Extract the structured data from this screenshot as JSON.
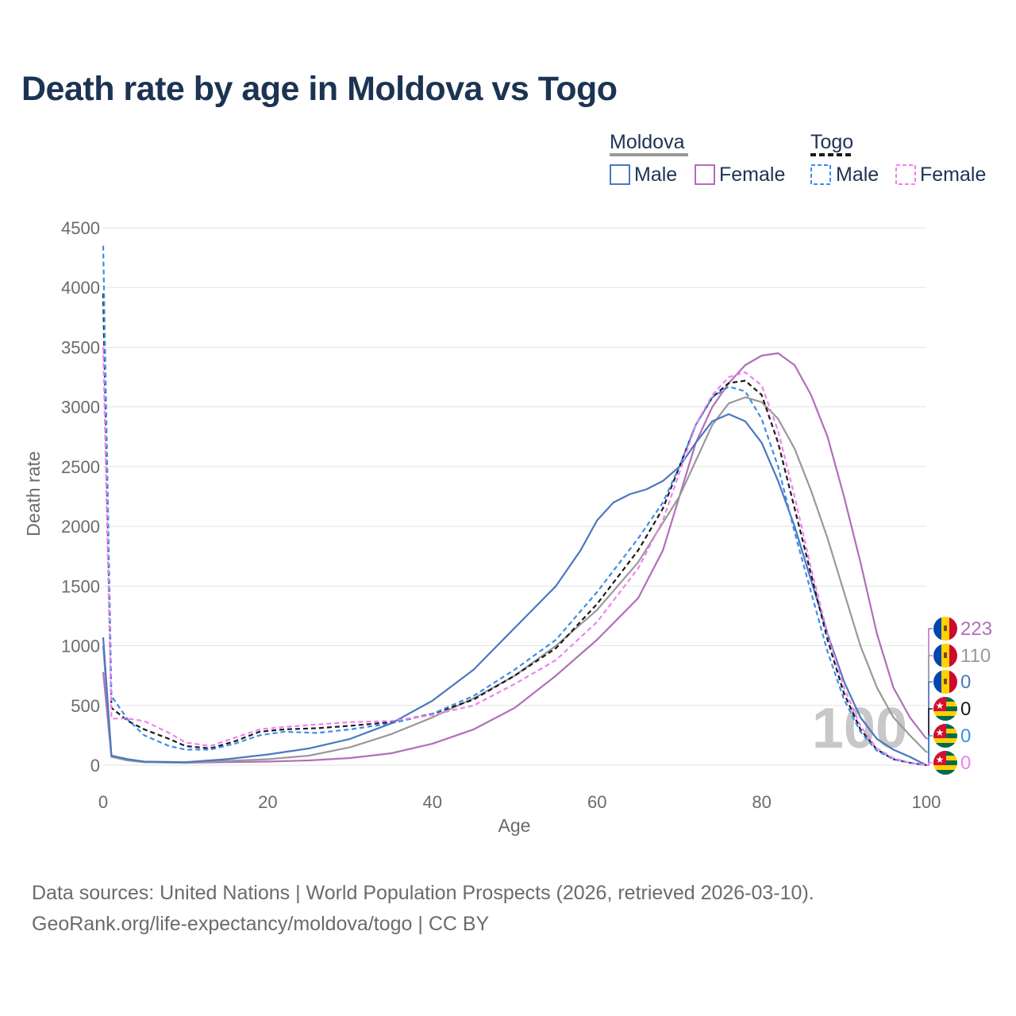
{
  "title": "Death rate by age in Moldova vs Togo",
  "source": {
    "line1": "Data sources: United Nations | World Population Prospects (2026, retrieved 2026-03-10).",
    "line2": "GeoRank.org/life-expectancy/moldova/togo | CC BY"
  },
  "legend": {
    "groups": [
      {
        "name": "Moldova",
        "items": [
          {
            "label": "Male",
            "color": "#4a78c0",
            "dash": false
          },
          {
            "label": "Female",
            "color": "#b070b8",
            "dash": false
          }
        ],
        "line_color": "#999999",
        "dash": false
      },
      {
        "name": "Togo",
        "items": [
          {
            "label": "Male",
            "color": "#3d8de8",
            "dash": true
          },
          {
            "label": "Female",
            "color": "#f080f0",
            "dash": true
          }
        ],
        "line_color": "#1a1a1a",
        "dash": true
      }
    ]
  },
  "watermark": "100",
  "chart_data": {
    "type": "line",
    "title": "Death rate by age in Moldova vs Togo",
    "xlabel": "Age",
    "ylabel": "Death rate",
    "xlim": [
      0,
      100
    ],
    "ylim": [
      0,
      4500
    ],
    "xticks": [
      0,
      20,
      40,
      60,
      80,
      100
    ],
    "yticks": [
      0,
      500,
      1000,
      1500,
      2000,
      2500,
      3000,
      3500,
      4000,
      4500
    ],
    "grid": true,
    "series": [
      {
        "name": "Moldova Female",
        "color": "#b070b8",
        "dash": false,
        "flag": "moldova",
        "end_label": "223",
        "points": [
          [
            0,
            780
          ],
          [
            1,
            70
          ],
          [
            3,
            40
          ],
          [
            5,
            25
          ],
          [
            10,
            20
          ],
          [
            15,
            25
          ],
          [
            20,
            30
          ],
          [
            25,
            40
          ],
          [
            30,
            60
          ],
          [
            35,
            100
          ],
          [
            40,
            180
          ],
          [
            45,
            300
          ],
          [
            50,
            480
          ],
          [
            55,
            750
          ],
          [
            60,
            1050
          ],
          [
            65,
            1400
          ],
          [
            68,
            1800
          ],
          [
            70,
            2250
          ],
          [
            72,
            2700
          ],
          [
            74,
            3000
          ],
          [
            76,
            3200
          ],
          [
            78,
            3350
          ],
          [
            80,
            3430
          ],
          [
            82,
            3450
          ],
          [
            84,
            3350
          ],
          [
            86,
            3100
          ],
          [
            88,
            2750
          ],
          [
            90,
            2250
          ],
          [
            92,
            1700
          ],
          [
            94,
            1100
          ],
          [
            96,
            650
          ],
          [
            98,
            400
          ],
          [
            100,
            223
          ]
        ]
      },
      {
        "name": "Moldova Total",
        "color": "#999999",
        "dash": false,
        "flag": "moldova",
        "end_label": "110",
        "points": [
          [
            0,
            1000
          ],
          [
            1,
            70
          ],
          [
            3,
            40
          ],
          [
            5,
            25
          ],
          [
            10,
            20
          ],
          [
            15,
            35
          ],
          [
            20,
            50
          ],
          [
            25,
            80
          ],
          [
            30,
            150
          ],
          [
            35,
            260
          ],
          [
            40,
            400
          ],
          [
            45,
            560
          ],
          [
            50,
            750
          ],
          [
            55,
            1000
          ],
          [
            60,
            1300
          ],
          [
            65,
            1700
          ],
          [
            70,
            2250
          ],
          [
            72,
            2550
          ],
          [
            74,
            2850
          ],
          [
            76,
            3030
          ],
          [
            78,
            3080
          ],
          [
            80,
            3040
          ],
          [
            82,
            2900
          ],
          [
            84,
            2650
          ],
          [
            86,
            2300
          ],
          [
            88,
            1900
          ],
          [
            90,
            1450
          ],
          [
            92,
            1000
          ],
          [
            94,
            650
          ],
          [
            96,
            400
          ],
          [
            98,
            250
          ],
          [
            100,
            110
          ]
        ]
      },
      {
        "name": "Moldova Male",
        "color": "#4a78c0",
        "dash": false,
        "flag": "moldova",
        "end_label": "0",
        "points": [
          [
            0,
            1070
          ],
          [
            1,
            80
          ],
          [
            3,
            50
          ],
          [
            5,
            30
          ],
          [
            10,
            25
          ],
          [
            15,
            50
          ],
          [
            20,
            90
          ],
          [
            25,
            140
          ],
          [
            30,
            220
          ],
          [
            35,
            350
          ],
          [
            40,
            540
          ],
          [
            45,
            800
          ],
          [
            50,
            1150
          ],
          [
            55,
            1500
          ],
          [
            58,
            1800
          ],
          [
            60,
            2050
          ],
          [
            62,
            2200
          ],
          [
            64,
            2270
          ],
          [
            66,
            2310
          ],
          [
            68,
            2380
          ],
          [
            70,
            2500
          ],
          [
            72,
            2700
          ],
          [
            74,
            2880
          ],
          [
            76,
            2940
          ],
          [
            78,
            2880
          ],
          [
            80,
            2700
          ],
          [
            82,
            2380
          ],
          [
            84,
            2000
          ],
          [
            86,
            1550
          ],
          [
            88,
            1100
          ],
          [
            90,
            700
          ],
          [
            92,
            400
          ],
          [
            94,
            220
          ],
          [
            96,
            130
          ],
          [
            98,
            70
          ],
          [
            100,
            0
          ]
        ]
      },
      {
        "name": "Togo Total",
        "color": "#1a1a1a",
        "dash": true,
        "flag": "togo",
        "end_label": "0",
        "points": [
          [
            0,
            3950
          ],
          [
            1,
            480
          ],
          [
            3,
            370
          ],
          [
            5,
            300
          ],
          [
            8,
            220
          ],
          [
            10,
            160
          ],
          [
            13,
            140
          ],
          [
            16,
            200
          ],
          [
            19,
            280
          ],
          [
            22,
            300
          ],
          [
            26,
            310
          ],
          [
            30,
            330
          ],
          [
            35,
            360
          ],
          [
            40,
            430
          ],
          [
            45,
            550
          ],
          [
            50,
            750
          ],
          [
            55,
            980
          ],
          [
            60,
            1350
          ],
          [
            65,
            1800
          ],
          [
            68,
            2150
          ],
          [
            70,
            2500
          ],
          [
            72,
            2850
          ],
          [
            74,
            3080
          ],
          [
            76,
            3200
          ],
          [
            78,
            3220
          ],
          [
            80,
            3100
          ],
          [
            82,
            2700
          ],
          [
            84,
            2150
          ],
          [
            86,
            1600
          ],
          [
            88,
            1050
          ],
          [
            90,
            600
          ],
          [
            92,
            300
          ],
          [
            94,
            130
          ],
          [
            96,
            50
          ],
          [
            98,
            20
          ],
          [
            100,
            0
          ]
        ]
      },
      {
        "name": "Togo Male",
        "color": "#3d8de8",
        "dash": true,
        "flag": "togo",
        "end_label": "0",
        "points": [
          [
            0,
            4350
          ],
          [
            1,
            580
          ],
          [
            3,
            380
          ],
          [
            5,
            250
          ],
          [
            8,
            160
          ],
          [
            10,
            130
          ],
          [
            13,
            130
          ],
          [
            16,
            180
          ],
          [
            19,
            250
          ],
          [
            22,
            280
          ],
          [
            26,
            270
          ],
          [
            30,
            300
          ],
          [
            35,
            350
          ],
          [
            40,
            430
          ],
          [
            45,
            580
          ],
          [
            50,
            800
          ],
          [
            55,
            1050
          ],
          [
            60,
            1450
          ],
          [
            65,
            1900
          ],
          [
            68,
            2200
          ],
          [
            70,
            2500
          ],
          [
            72,
            2850
          ],
          [
            74,
            3080
          ],
          [
            76,
            3170
          ],
          [
            78,
            3130
          ],
          [
            80,
            2900
          ],
          [
            82,
            2500
          ],
          [
            84,
            1950
          ],
          [
            86,
            1450
          ],
          [
            88,
            950
          ],
          [
            90,
            550
          ],
          [
            92,
            280
          ],
          [
            94,
            120
          ],
          [
            96,
            50
          ],
          [
            98,
            20
          ],
          [
            100,
            0
          ]
        ]
      },
      {
        "name": "Togo Female",
        "color": "#f080f0",
        "dash": true,
        "flag": "togo",
        "end_label": "0",
        "points": [
          [
            0,
            3500
          ],
          [
            1,
            390
          ],
          [
            3,
            390
          ],
          [
            5,
            370
          ],
          [
            8,
            270
          ],
          [
            10,
            190
          ],
          [
            13,
            160
          ],
          [
            16,
            230
          ],
          [
            19,
            300
          ],
          [
            22,
            320
          ],
          [
            26,
            340
          ],
          [
            30,
            360
          ],
          [
            35,
            370
          ],
          [
            40,
            420
          ],
          [
            45,
            500
          ],
          [
            50,
            680
          ],
          [
            55,
            880
          ],
          [
            60,
            1200
          ],
          [
            65,
            1650
          ],
          [
            68,
            2050
          ],
          [
            70,
            2450
          ],
          [
            72,
            2850
          ],
          [
            74,
            3100
          ],
          [
            76,
            3250
          ],
          [
            78,
            3290
          ],
          [
            80,
            3180
          ],
          [
            82,
            2800
          ],
          [
            84,
            2250
          ],
          [
            86,
            1650
          ],
          [
            88,
            1100
          ],
          [
            90,
            650
          ],
          [
            92,
            330
          ],
          [
            94,
            140
          ],
          [
            96,
            60
          ],
          [
            98,
            20
          ],
          [
            100,
            0
          ]
        ]
      }
    ]
  }
}
